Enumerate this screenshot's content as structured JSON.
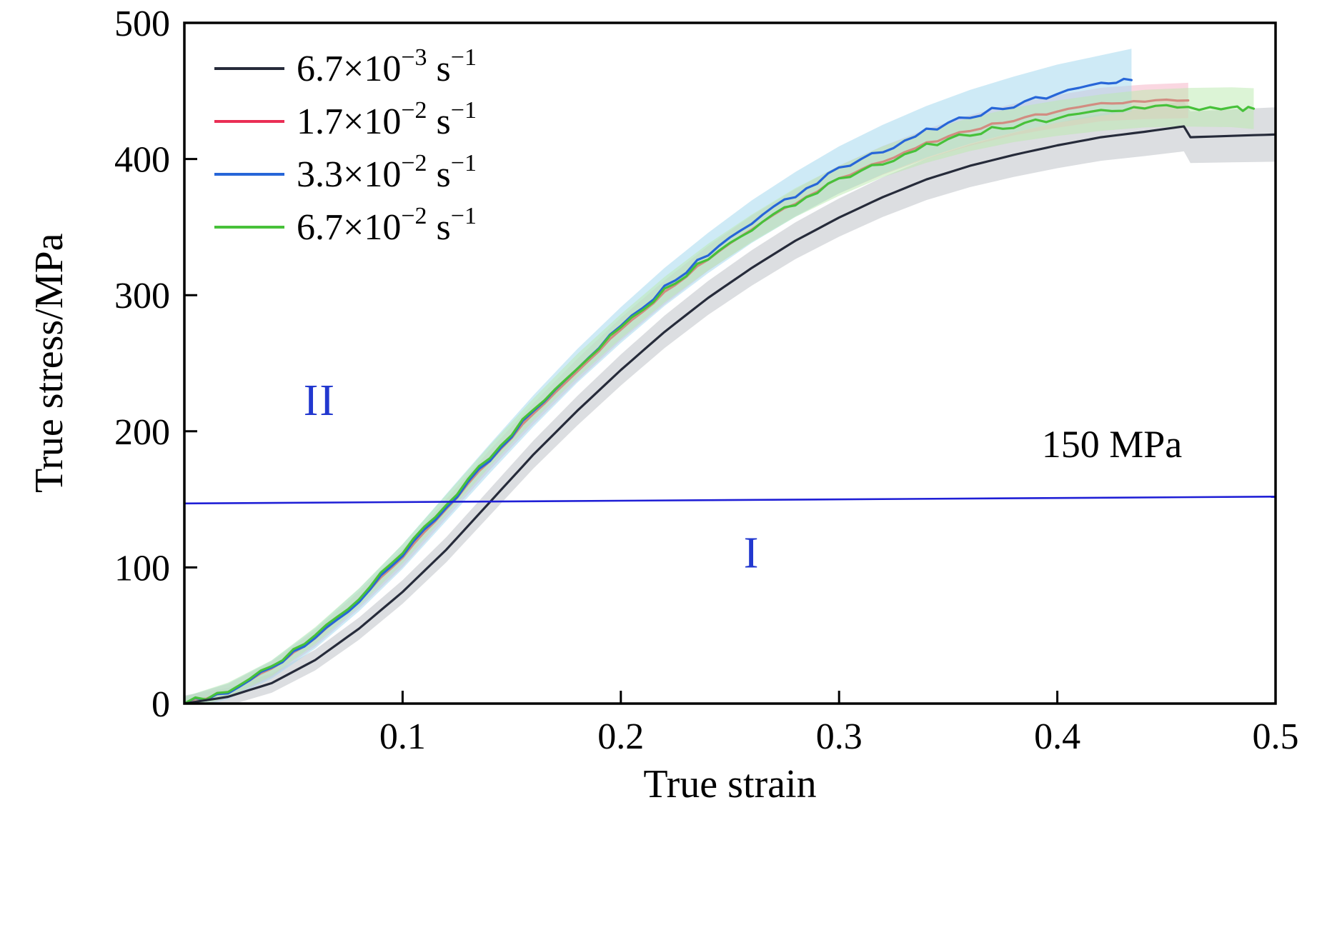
{
  "chart_data": {
    "type": "line",
    "title": "",
    "xlabel": "True strain",
    "ylabel": "True stress/MPa",
    "xlim": [
      0,
      0.5
    ],
    "ylim": [
      0,
      500
    ],
    "grid": false,
    "legend_position": "top-left",
    "frame_color": "#000000",
    "xticks": [
      {
        "value": 0.1,
        "label": "0.1"
      },
      {
        "value": 0.2,
        "label": "0.2"
      },
      {
        "value": 0.3,
        "label": "0.3"
      },
      {
        "value": 0.4,
        "label": "0.4"
      },
      {
        "value": 0.5,
        "label": "0.5"
      }
    ],
    "yticks": [
      {
        "value": 0,
        "label": "0"
      },
      {
        "value": 100,
        "label": "100"
      },
      {
        "value": 200,
        "label": "200"
      },
      {
        "value": 300,
        "label": "300"
      },
      {
        "value": 400,
        "label": "400"
      },
      {
        "value": 500,
        "label": "500"
      }
    ],
    "series": [
      {
        "id": "rate-6.7e-3",
        "name": "6.7×10^-3 s^-1",
        "label_parts": {
          "coef": "6.7×10",
          "exp": "−3",
          "unit": " s",
          "unit_exp": "−1"
        },
        "color": "#262b3a",
        "band_color": "#bfc3c9",
        "band_opacity": 0.55,
        "band_width_start": 6,
        "band_width_end": 20,
        "jitter": 0,
        "points": [
          [
            0,
            0
          ],
          [
            0.02,
            5
          ],
          [
            0.04,
            15
          ],
          [
            0.06,
            32
          ],
          [
            0.08,
            55
          ],
          [
            0.1,
            82
          ],
          [
            0.12,
            113
          ],
          [
            0.14,
            148
          ],
          [
            0.16,
            183
          ],
          [
            0.18,
            215
          ],
          [
            0.2,
            245
          ],
          [
            0.22,
            273
          ],
          [
            0.24,
            298
          ],
          [
            0.26,
            320
          ],
          [
            0.28,
            340
          ],
          [
            0.3,
            357
          ],
          [
            0.32,
            372
          ],
          [
            0.34,
            385
          ],
          [
            0.36,
            395
          ],
          [
            0.38,
            403
          ],
          [
            0.4,
            410
          ],
          [
            0.42,
            416
          ],
          [
            0.44,
            420
          ],
          [
            0.458,
            424
          ],
          [
            0.461,
            416
          ],
          [
            0.48,
            417
          ],
          [
            0.5,
            418
          ]
        ]
      },
      {
        "id": "rate-1.7e-2",
        "name": "1.7×10^-2 s^-1",
        "label_parts": {
          "coef": "1.7×10",
          "exp": "−2",
          "unit": " s",
          "unit_exp": "−1"
        },
        "color": "#ea2e55",
        "band_color": "#f6b6c9",
        "band_opacity": 0.55,
        "band_width_start": 5,
        "band_width_end": 13,
        "jitter": 1.2,
        "points": [
          [
            0,
            0
          ],
          [
            0.02,
            9
          ],
          [
            0.04,
            25
          ],
          [
            0.06,
            48
          ],
          [
            0.08,
            76
          ],
          [
            0.1,
            107
          ],
          [
            0.12,
            143
          ],
          [
            0.14,
            179
          ],
          [
            0.16,
            213
          ],
          [
            0.18,
            245
          ],
          [
            0.2,
            275
          ],
          [
            0.22,
            302
          ],
          [
            0.24,
            327
          ],
          [
            0.26,
            349
          ],
          [
            0.28,
            368
          ],
          [
            0.3,
            385
          ],
          [
            0.32,
            399
          ],
          [
            0.34,
            411
          ],
          [
            0.36,
            421
          ],
          [
            0.38,
            429
          ],
          [
            0.4,
            435
          ],
          [
            0.42,
            440
          ],
          [
            0.44,
            442
          ],
          [
            0.46,
            443
          ]
        ]
      },
      {
        "id": "rate-3.3e-2",
        "name": "3.3×10^-2 s^-1",
        "label_parts": {
          "coef": "3.3×10",
          "exp": "−2",
          "unit": " s",
          "unit_exp": "−1"
        },
        "color": "#2766d8",
        "band_color": "#a6d9ef",
        "band_opacity": 0.55,
        "band_width_start": 5,
        "band_width_end": 23,
        "jitter": 2.3,
        "points": [
          [
            0,
            0
          ],
          [
            0.02,
            9
          ],
          [
            0.04,
            25
          ],
          [
            0.06,
            48
          ],
          [
            0.08,
            76
          ],
          [
            0.1,
            108
          ],
          [
            0.12,
            144
          ],
          [
            0.14,
            180
          ],
          [
            0.16,
            215
          ],
          [
            0.18,
            248
          ],
          [
            0.2,
            278
          ],
          [
            0.22,
            306
          ],
          [
            0.24,
            331
          ],
          [
            0.26,
            354
          ],
          [
            0.28,
            374
          ],
          [
            0.3,
            392
          ],
          [
            0.32,
            407
          ],
          [
            0.34,
            420
          ],
          [
            0.36,
            431
          ],
          [
            0.38,
            440
          ],
          [
            0.4,
            448
          ],
          [
            0.42,
            454
          ],
          [
            0.434,
            458
          ]
        ]
      },
      {
        "id": "rate-6.7e-2",
        "name": "6.7×10^-2 s^-1",
        "label_parts": {
          "coef": "6.7×10",
          "exp": "−2",
          "unit": " s",
          "unit_exp": "−1"
        },
        "color": "#47c13a",
        "band_color": "#b9e9ae",
        "band_opacity": 0.5,
        "band_width_start": 5,
        "band_width_end": 15,
        "jitter": 2.3,
        "points": [
          [
            0,
            0
          ],
          [
            0.02,
            10
          ],
          [
            0.04,
            26
          ],
          [
            0.06,
            50
          ],
          [
            0.08,
            78
          ],
          [
            0.1,
            110
          ],
          [
            0.12,
            146
          ],
          [
            0.14,
            182
          ],
          [
            0.16,
            216
          ],
          [
            0.18,
            248
          ],
          [
            0.2,
            277
          ],
          [
            0.22,
            304
          ],
          [
            0.24,
            328
          ],
          [
            0.26,
            349
          ],
          [
            0.28,
            368
          ],
          [
            0.3,
            384
          ],
          [
            0.32,
            398
          ],
          [
            0.34,
            409
          ],
          [
            0.36,
            418
          ],
          [
            0.38,
            425
          ],
          [
            0.4,
            430
          ],
          [
            0.42,
            434
          ],
          [
            0.44,
            437
          ],
          [
            0.46,
            438
          ],
          [
            0.48,
            438
          ],
          [
            0.49,
            437
          ]
        ]
      }
    ],
    "annotations": {
      "hline": {
        "y_start": 147,
        "y_end": 152,
        "color": "#1f1fd6",
        "label": "150 MPa",
        "label_x": 0.425,
        "label_y": 181,
        "label_color": "#000000"
      },
      "regions": [
        {
          "text": "II",
          "x": 0.062,
          "y": 212,
          "color": "#2238cf"
        },
        {
          "text": "I",
          "x": 0.26,
          "y": 100,
          "color": "#2238cf"
        }
      ]
    }
  }
}
